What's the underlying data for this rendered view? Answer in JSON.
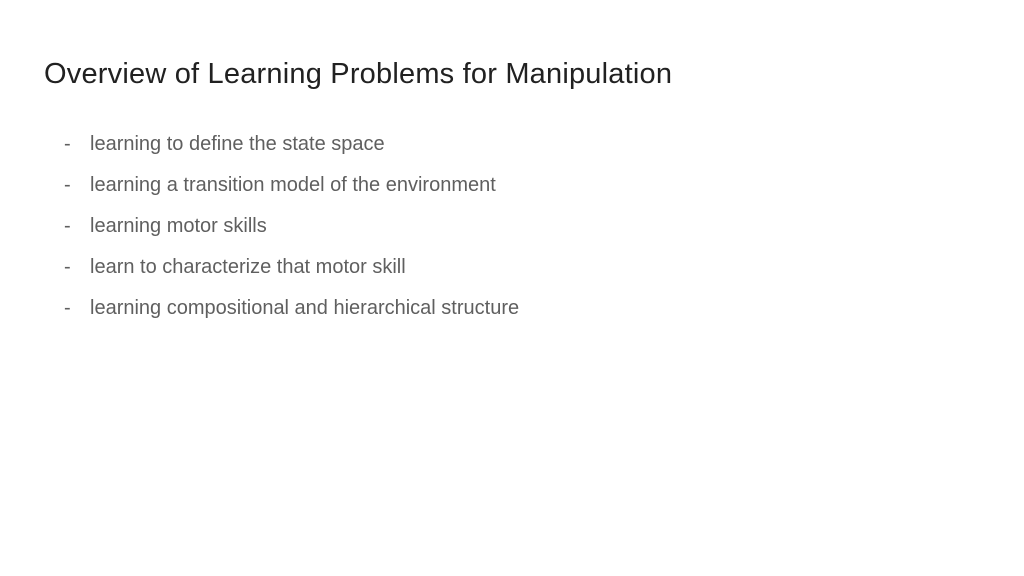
{
  "slide": {
    "title": "Overview of Learning Problems for Manipulation",
    "bullets": [
      "learning to define the state space",
      "learning a transition model of the environment",
      "learning motor skills",
      "learn to characterize that motor skill",
      "learning compositional and hierarchical structure"
    ],
    "dash": "-"
  },
  "style": {
    "background_color": "#ffffff",
    "title_color": "#212121",
    "title_fontsize": 29,
    "bullet_color": "#5f5f5f",
    "bullet_fontsize": 20,
    "font_family": "Arial"
  }
}
